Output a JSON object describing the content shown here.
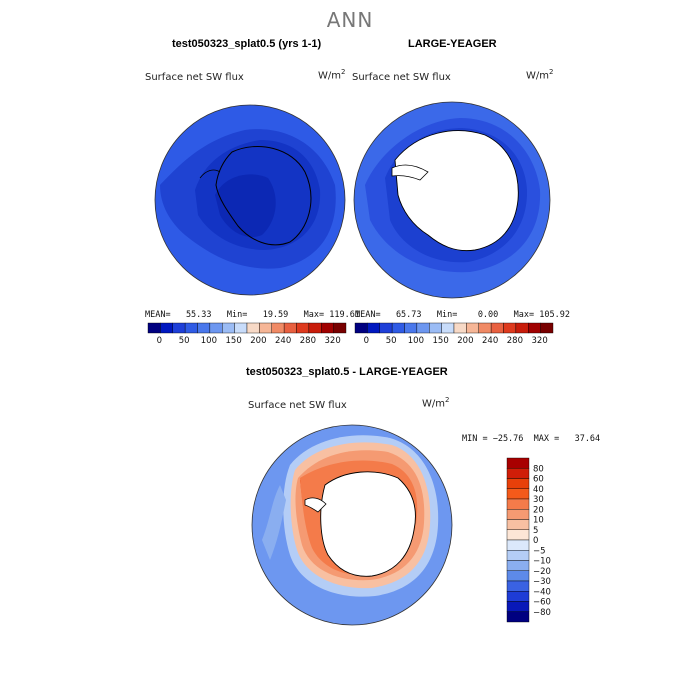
{
  "page_title": "ANN",
  "panels": [
    {
      "title": "test050323_splat0.5 (yrs 1-1)",
      "variable": "Surface net SW flux",
      "units_base": "W/m",
      "units_exp": "2",
      "stats": "MEAN=   55.33   Min=   19.59   Max= 119.61"
    },
    {
      "title": "LARGE-YEAGER",
      "variable": "Surface net SW flux",
      "units_base": "W/m",
      "units_exp": "2",
      "stats": "MEAN=   65.73   Min=    0.00   Max= 105.92"
    },
    {
      "title": "test050323_splat0.5 - LARGE-YEAGER",
      "variable": "Surface net SW flux",
      "units_base": "W/m",
      "units_exp": "2",
      "stats": "MIN = −25.76  MAX =   37.64"
    }
  ],
  "chart_data": [
    {
      "type": "heatmap",
      "title": "test050323_splat0.5 (yrs 1-1)",
      "subtitle": "Surface net SW flux",
      "units": "W/m2",
      "projection": "south-polar stereographic",
      "colorbar": {
        "orientation": "horizontal",
        "levels": [
          0,
          50,
          100,
          150,
          200,
          240,
          280,
          320
        ],
        "colors": [
          "#000080",
          "#0018c0",
          "#1e3fd8",
          "#2f5be5",
          "#4a78ec",
          "#6d97f0",
          "#9bbcf5",
          "#c8dcfa",
          "#f7d9c6",
          "#f6b697",
          "#f08a65",
          "#e86040",
          "#de3a1e",
          "#c81c0a",
          "#a00000",
          "#780000"
        ]
      },
      "mean": 55.33,
      "min": 19.59,
      "max": 119.61
    },
    {
      "type": "heatmap",
      "title": "LARGE-YEAGER",
      "subtitle": "Surface net SW flux",
      "units": "W/m2",
      "projection": "south-polar stereographic",
      "colorbar": {
        "orientation": "horizontal",
        "levels": [
          0,
          50,
          100,
          150,
          200,
          240,
          280,
          320
        ],
        "colors": [
          "#000080",
          "#0018c0",
          "#1e3fd8",
          "#2f5be5",
          "#4a78ec",
          "#6d97f0",
          "#9bbcf5",
          "#c8dcfa",
          "#f7d9c6",
          "#f6b697",
          "#f08a65",
          "#e86040",
          "#de3a1e",
          "#c81c0a",
          "#a00000",
          "#780000"
        ]
      },
      "mean": 65.73,
      "min": 0.0,
      "max": 105.92
    },
    {
      "type": "heatmap",
      "title": "test050323_splat0.5 - LARGE-YEAGER",
      "subtitle": "Surface net SW flux",
      "units": "W/m2",
      "projection": "south-polar stereographic",
      "colorbar": {
        "orientation": "vertical",
        "levels": [
          80,
          60,
          40,
          30,
          20,
          10,
          5,
          0,
          -5,
          -10,
          -20,
          -30,
          -40,
          -60,
          -80
        ],
        "colors": [
          "#a80000",
          "#d01e08",
          "#e8400a",
          "#f45a1a",
          "#f47b4a",
          "#f59a72",
          "#f8c0a2",
          "#fde6d6",
          "#dbe8fb",
          "#b4cdf6",
          "#8aaef0",
          "#5d8ae9",
          "#3a62e2",
          "#1e3cd6",
          "#0818b8",
          "#000080"
        ]
      },
      "min": -25.76,
      "max": 37.64
    }
  ]
}
